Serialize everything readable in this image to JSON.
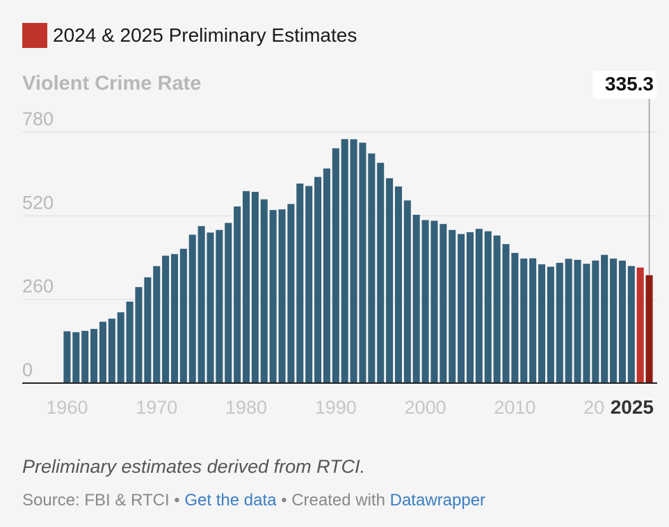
{
  "legend": {
    "label": "2024 & 2025 Preliminary Estimates",
    "color": "#c0342b"
  },
  "colors": {
    "bar": "#34607a",
    "highlight": "#c0342b",
    "highlight_last": "#8e1c12",
    "grid": "#dcdcdc",
    "axis": "#222222"
  },
  "annotation": {
    "value_label": "335.3"
  },
  "chart_data": {
    "type": "bar",
    "ylabel": "Violent Crime Rate",
    "ylim": [
      0,
      780
    ],
    "yticks": [
      0,
      260,
      520,
      780
    ],
    "xticks": [
      "1960",
      "1970",
      "1980",
      "1990",
      "2000",
      "2010",
      "2020"
    ],
    "last_x_label": "2025",
    "grid": true,
    "x": [
      1960,
      1961,
      1962,
      1963,
      1964,
      1965,
      1966,
      1967,
      1968,
      1969,
      1970,
      1971,
      1972,
      1973,
      1974,
      1975,
      1976,
      1977,
      1978,
      1979,
      1980,
      1981,
      1982,
      1983,
      1984,
      1985,
      1986,
      1987,
      1988,
      1989,
      1990,
      1991,
      1992,
      1993,
      1994,
      1995,
      1996,
      1997,
      1998,
      1999,
      2000,
      2001,
      2002,
      2003,
      2004,
      2005,
      2006,
      2007,
      2008,
      2009,
      2010,
      2011,
      2012,
      2013,
      2014,
      2015,
      2016,
      2017,
      2018,
      2019,
      2020,
      2021,
      2022,
      2023,
      2024,
      2025
    ],
    "values": [
      160.9,
      158.1,
      162.3,
      168.2,
      190.6,
      200.2,
      220.0,
      253.2,
      298.4,
      328.7,
      363.5,
      396.0,
      401.0,
      417.4,
      461.1,
      487.8,
      467.8,
      475.9,
      497.8,
      548.9,
      596.6,
      594.3,
      571.1,
      537.7,
      539.9,
      556.6,
      620.1,
      612.5,
      640.6,
      666.9,
      729.6,
      758.2,
      757.7,
      747.1,
      713.6,
      684.5,
      636.6,
      611.0,
      567.6,
      523.0,
      506.5,
      504.5,
      494.4,
      475.8,
      463.2,
      469.0,
      479.3,
      471.8,
      458.6,
      431.9,
      404.5,
      387.1,
      387.8,
      369.1,
      361.6,
      373.7,
      386.3,
      382.9,
      370.8,
      380.8,
      398.5,
      387.0,
      380.7,
      363.8,
      359.0,
      335.3
    ],
    "preliminary_years": [
      2024,
      2025
    ]
  },
  "footer": {
    "note": "Preliminary estimates derived from RTCI.",
    "source_prefix": "Source: FBI & RTCI",
    "separator": " • ",
    "get_data": "Get the data",
    "created_with": "Created with",
    "tool": "Datawrapper"
  }
}
